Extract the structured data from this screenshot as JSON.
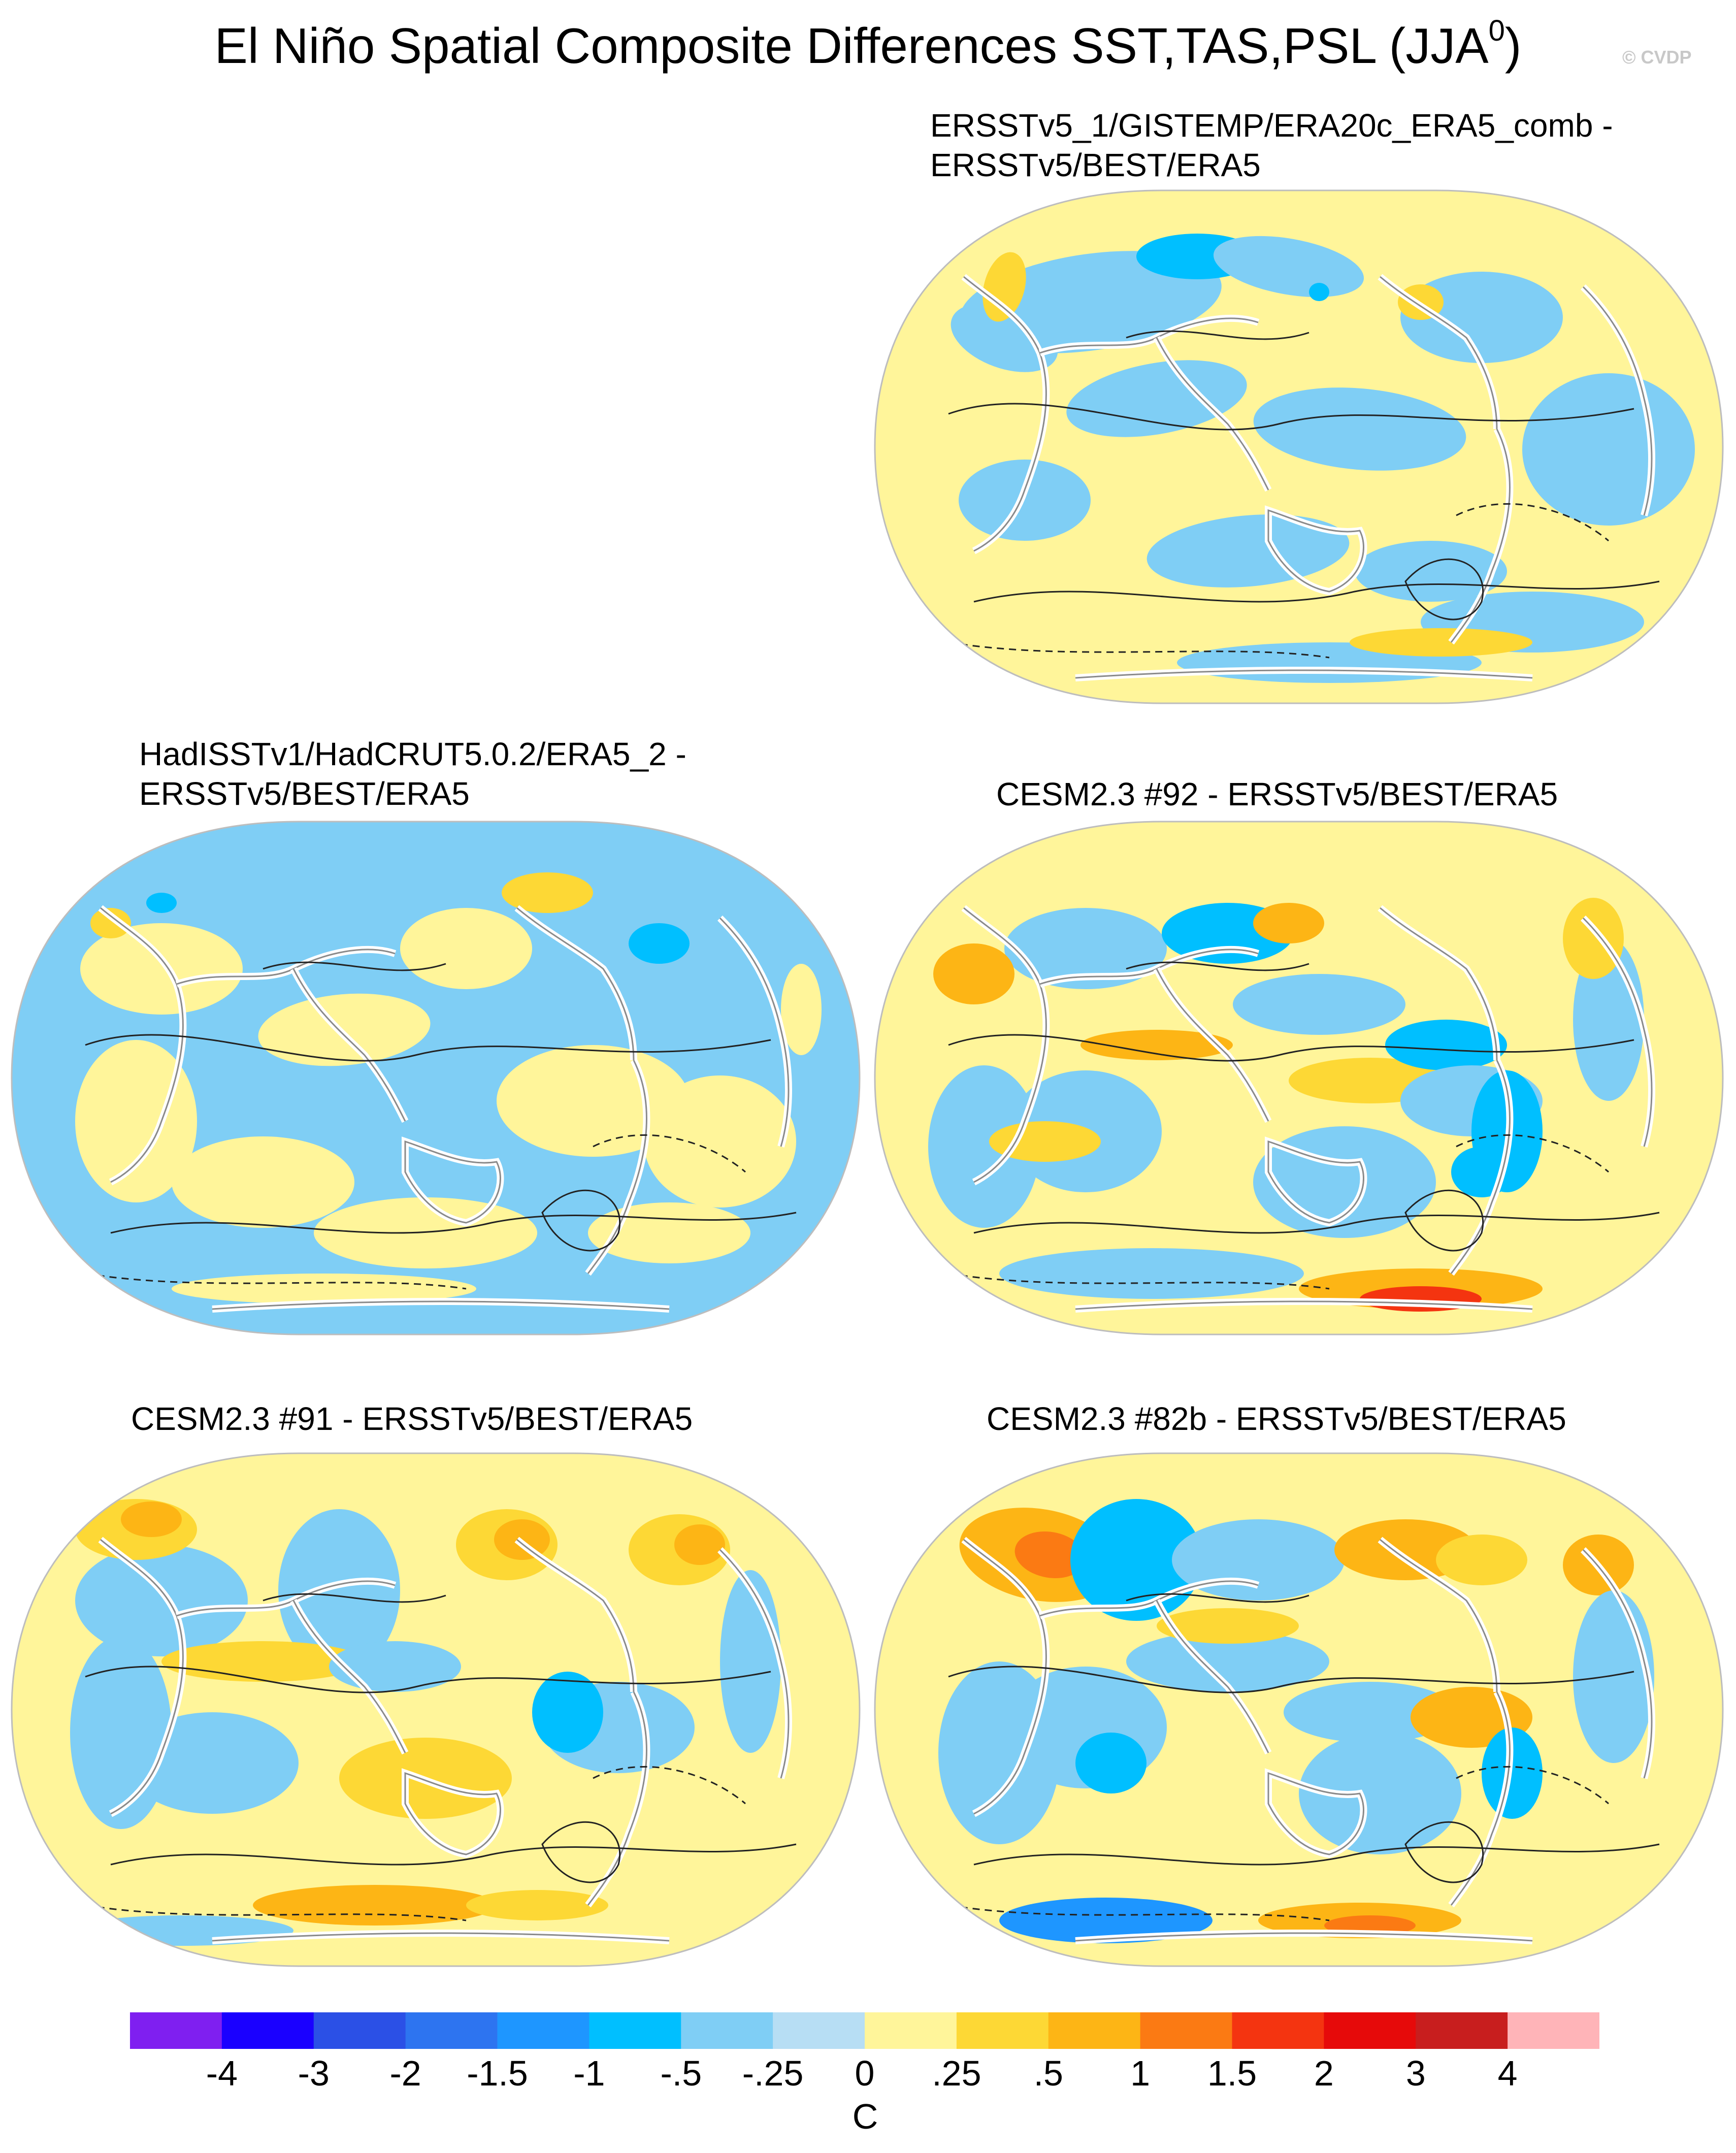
{
  "title": {
    "text": "El Niño Spatial Composite Differences SST,TAS,PSL (JJA",
    "superscript": "0",
    "close": ")"
  },
  "watermark": "© CVDP",
  "panels": [
    {
      "id": "p1",
      "title_lines": [
        "ERSSTv5_1/GISTEMP/ERA20c_ERA5_comb -",
        "ERSSTv5/BEST/ERA5"
      ],
      "style": "a"
    },
    {
      "id": "p2",
      "title_lines": [
        "HadISSTv1/HadCRUT5.0.2/ERA5_2 -",
        "ERSSTv5/BEST/ERA5"
      ],
      "style": "b"
    },
    {
      "id": "p3",
      "title_lines": [
        "CESM2.3 #92 - ERSSTv5/BEST/ERA5"
      ],
      "style": "c"
    },
    {
      "id": "p4",
      "title_lines": [
        "CESM2.3 #91 - ERSSTv5/BEST/ERA5"
      ],
      "style": "d"
    },
    {
      "id": "p5",
      "title_lines": [
        "CESM2.3 #82b - ERSSTv5/BEST/ERA5"
      ],
      "style": "e"
    }
  ],
  "colorbar": {
    "units": "C",
    "labels": [
      "-4",
      "-3",
      "-2",
      "-1.5",
      "-1",
      "-.5",
      "-.25",
      "0",
      ".25",
      ".5",
      "1",
      "1.5",
      "2",
      "3",
      "4"
    ],
    "colors": [
      "#7f1ff0",
      "#1a00ff",
      "#2b50e6",
      "#2d74f0",
      "#1e96ff",
      "#00bfff",
      "#7fcef5",
      "#b7def4",
      "#fff59a",
      "#fdd835",
      "#fdb515",
      "#fb7a13",
      "#f43410",
      "#e60a0a",
      "#c81e1e",
      "#ffb4b8"
    ]
  }
}
